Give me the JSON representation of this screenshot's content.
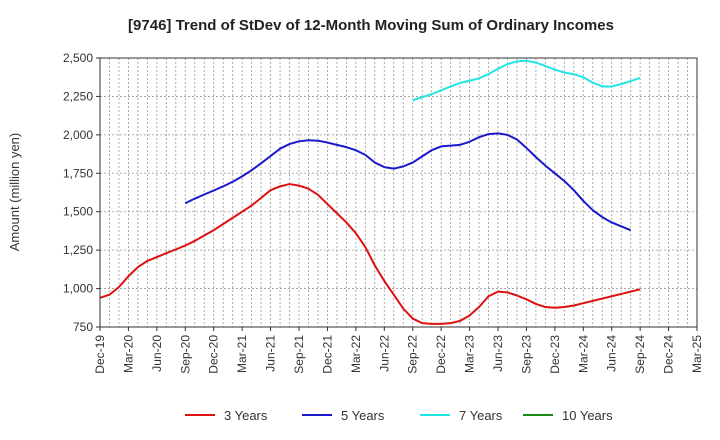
{
  "chart_data": {
    "type": "line",
    "title": "[9746]  Trend of StDev of 12-Month Moving Sum of Ordinary Incomes",
    "ylabel": "Amount (million yen)",
    "xlabel": "",
    "ylim": [
      750,
      2500
    ],
    "yticks": [
      750,
      1000,
      1250,
      1500,
      1750,
      2000,
      2250,
      2500
    ],
    "ytick_labels": [
      "750",
      "1,000",
      "1,250",
      "1,500",
      "1,750",
      "2,000",
      "2,250",
      "2,500"
    ],
    "xticks": [
      "Dec-19",
      "Mar-20",
      "Jun-20",
      "Sep-20",
      "Dec-20",
      "Mar-21",
      "Jun-21",
      "Sep-21",
      "Dec-21",
      "Mar-22",
      "Jun-22",
      "Sep-22",
      "Dec-22",
      "Mar-23",
      "Jun-23",
      "Sep-23",
      "Dec-23",
      "Mar-24",
      "Jun-24",
      "Sep-24",
      "Dec-24",
      "Mar-25"
    ],
    "grid": true,
    "legend_position": "bottom",
    "series": [
      {
        "name": "3 Years",
        "color": "#dd1111",
        "start": "Dec-19",
        "values": [
          940,
          960,
          1010,
          1080,
          1140,
          1180,
          1205,
          1230,
          1255,
          1280,
          1310,
          1345,
          1380,
          1420,
          1460,
          1500,
          1540,
          1590,
          1640,
          1665,
          1680,
          1670,
          1650,
          1610,
          1550,
          1490,
          1430,
          1360,
          1270,
          1150,
          1050,
          960,
          870,
          805,
          775,
          770,
          770,
          775,
          790,
          825,
          880,
          950,
          980,
          975,
          955,
          930,
          900,
          880,
          875,
          880,
          890,
          905,
          920,
          935,
          950,
          965,
          980,
          995
        ]
      },
      {
        "name": "5 Years",
        "color": "#1a1acc",
        "start": "Sep-20",
        "values": [
          1555,
          1585,
          1612,
          1638,
          1665,
          1695,
          1730,
          1770,
          1815,
          1862,
          1910,
          1940,
          1958,
          1965,
          1962,
          1950,
          1935,
          1920,
          1900,
          1870,
          1820,
          1790,
          1780,
          1795,
          1820,
          1860,
          1900,
          1925,
          1930,
          1935,
          1955,
          1985,
          2005,
          2010,
          2000,
          1970,
          1915,
          1855,
          1800,
          1750,
          1700,
          1640,
          1570,
          1510,
          1465,
          1430,
          1405,
          1380
        ]
      },
      {
        "name": "7 Years",
        "color": "#22e5e5",
        "start": "Sep-22",
        "values": [
          2225,
          2245,
          2265,
          2290,
          2315,
          2338,
          2352,
          2368,
          2395,
          2430,
          2460,
          2478,
          2482,
          2470,
          2448,
          2425,
          2405,
          2395,
          2375,
          2340,
          2315,
          2315,
          2330,
          2350,
          2370
        ]
      },
      {
        "name": "10 Years",
        "color": "#1a8a1a",
        "start": "Sep-22",
        "values": []
      }
    ]
  }
}
